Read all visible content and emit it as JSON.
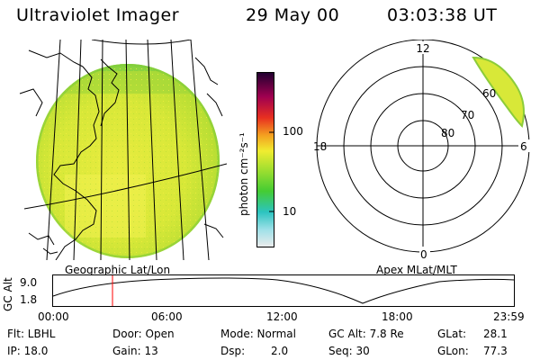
{
  "header": {
    "instrument": "Ultraviolet Imager",
    "date": "29 May 00",
    "time": "03:03:38 UT"
  },
  "colorbar": {
    "unit_label": "photon cm⁻²s⁻¹",
    "ticks": [
      "100",
      "10"
    ],
    "colors": [
      "#e0e0e0",
      "#2cc4c0",
      "#44cc33",
      "#c8e830",
      "#f0ec30",
      "#f4a020",
      "#e83020",
      "#a00050",
      "#300040"
    ]
  },
  "left_panel": {
    "caption": "Geographic Lat/Lon"
  },
  "right_panel": {
    "caption": "Apex MLat/MLT",
    "mlt_labels": {
      "top": "12",
      "left": "18",
      "right": "6",
      "bottom": "0"
    },
    "lat_labels": [
      "60",
      "70",
      "80"
    ]
  },
  "altitude_plot": {
    "ylabel": "GC Alt",
    "y_ticks": [
      "9.0",
      "1.8"
    ],
    "x_ticks": [
      "00:00",
      "06:00",
      "12:00",
      "18:00",
      "23:59"
    ],
    "marker_color": "#ff0000"
  },
  "status": {
    "flt": "Flt: LBHL",
    "ip": "IP: 18.0",
    "door": "Door: Open",
    "gain": "Gain: 13",
    "mode": "Mode: Normal",
    "dsp_label": "Dsp:",
    "dsp_value": "2.0",
    "gc_alt": "GC Alt: 7.8 Re",
    "seq": "Seq: 30",
    "glat_label": "GLat:",
    "glat_value": "28.1",
    "glon_label": "GLon:",
    "glon_value": "77.3"
  }
}
